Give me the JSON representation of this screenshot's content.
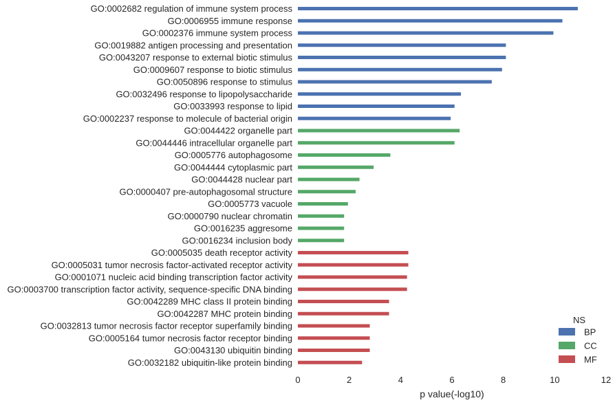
{
  "chart_data": {
    "type": "bar",
    "orientation": "horizontal",
    "xlabel": "p value(-log10)",
    "ylabel": "",
    "xlim": [
      0,
      12
    ],
    "xticks": [
      0,
      2,
      4,
      6,
      8,
      10,
      12
    ],
    "grid": false,
    "legend": {
      "title": "NS",
      "placement": "bottom-right",
      "entries": [
        {
          "name": "BP",
          "color": "#4c72b0"
        },
        {
          "name": "CC",
          "color": "#55a868"
        },
        {
          "name": "MF",
          "color": "#c44e52"
        }
      ]
    },
    "categories": [
      "GO:0002682 regulation of immune system process",
      "GO:0006955 immune response",
      "GO:0002376 immune system process",
      "GO:0019882 antigen processing and presentation",
      "GO:0043207 response to external biotic stimulus",
      "GO:0009607 response to biotic stimulus",
      "GO:0050896 response to stimulus",
      "GO:0032496 response to lipopolysaccharide",
      "GO:0033993 response to lipid",
      "GO:0002237 response to molecule of bacterial origin",
      "GO:0044422 organelle part",
      "GO:0044446 intracellular organelle part",
      "GO:0005776 autophagosome",
      "GO:0044444 cytoplasmic part",
      "GO:0044428 nuclear part",
      "GO:0000407 pre-autophagosomal structure",
      "GO:0005773 vacuole",
      "GO:0000790 nuclear chromatin",
      "GO:0016235 aggresome",
      "GO:0016234 inclusion body",
      "GO:0005035 death receptor activity",
      "GO:0005031 tumor necrosis factor-activated receptor activity",
      "GO:0001071 nucleic acid binding transcription factor activity",
      "GO:0003700 transcription factor activity, sequence-specific DNA binding",
      "GO:0042289 MHC class II protein binding",
      "GO:0042287 MHC protein binding",
      "GO:0032813 tumor necrosis factor receptor superfamily binding",
      "GO:0005164 tumor necrosis factor receptor binding",
      "GO:0043130 ubiquitin binding",
      "GO:0032182 ubiquitin-like protein binding"
    ],
    "series": [
      {
        "name": "BP",
        "color": "#4c72b0",
        "values": [
          10.9,
          10.3,
          9.95,
          8.1,
          8.1,
          7.95,
          7.55,
          6.35,
          6.1,
          5.95,
          null,
          null,
          null,
          null,
          null,
          null,
          null,
          null,
          null,
          null,
          null,
          null,
          null,
          null,
          null,
          null,
          null,
          null,
          null,
          null
        ]
      },
      {
        "name": "CC",
        "color": "#55a868",
        "values": [
          null,
          null,
          null,
          null,
          null,
          null,
          null,
          null,
          null,
          null,
          6.3,
          6.1,
          3.6,
          2.95,
          2.4,
          2.25,
          1.95,
          1.8,
          1.8,
          1.8,
          null,
          null,
          null,
          null,
          null,
          null,
          null,
          null,
          null,
          null
        ]
      },
      {
        "name": "MF",
        "color": "#c44e52",
        "values": [
          null,
          null,
          null,
          null,
          null,
          null,
          null,
          null,
          null,
          null,
          null,
          null,
          null,
          null,
          null,
          null,
          null,
          null,
          null,
          null,
          4.3,
          4.3,
          4.25,
          4.25,
          3.55,
          3.55,
          2.8,
          2.8,
          2.8,
          2.5
        ]
      }
    ]
  }
}
